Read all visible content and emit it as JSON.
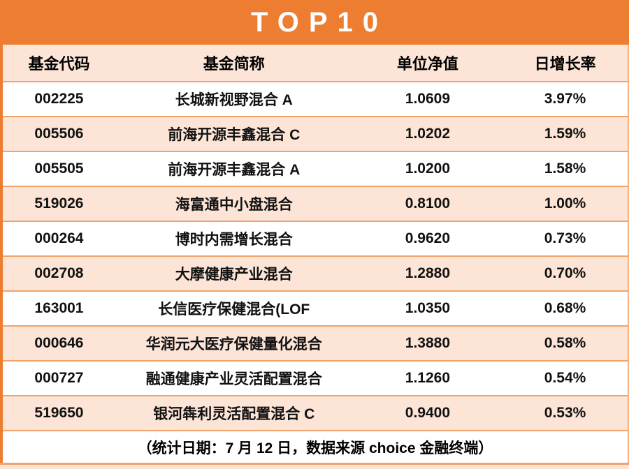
{
  "title": "TOP10",
  "chart_data": {
    "type": "table",
    "title": "TOP10",
    "columns": [
      "基金代码",
      "基金简称",
      "单位净值",
      "日增长率"
    ],
    "rows": [
      [
        "002225",
        "长城新视野混合 A",
        "1.0609",
        "3.97%"
      ],
      [
        "005506",
        "前海开源丰鑫混合 C",
        "1.0202",
        "1.59%"
      ],
      [
        "005505",
        "前海开源丰鑫混合 A",
        "1.0200",
        "1.58%"
      ],
      [
        "519026",
        "海富通中小盘混合",
        "0.8100",
        "1.00%"
      ],
      [
        "000264",
        "博时内需增长混合",
        "0.9620",
        "0.73%"
      ],
      [
        "002708",
        "大摩健康产业混合",
        "1.2880",
        "0.70%"
      ],
      [
        "163001",
        "长信医疗保健混合(LOF",
        "1.0350",
        "0.68%"
      ],
      [
        "000646",
        "华润元大医疗保健量化混合",
        "1.3880",
        "0.58%"
      ],
      [
        "000727",
        "融通健康产业灵活配置混合",
        "1.1260",
        "0.54%"
      ],
      [
        "519650",
        "银河犇利灵活配置混合 C",
        "0.9400",
        "0.53%"
      ]
    ],
    "footer_note": "（统计日期：7 月 12 日，数据来源 choice 金融终端）"
  },
  "colors": {
    "header_orange": "#ED7D31",
    "row_peach": "#FCE4D6",
    "separator_orange": "#F2A36B",
    "title_text": "#FFFFFF",
    "body_text": "#111111"
  }
}
